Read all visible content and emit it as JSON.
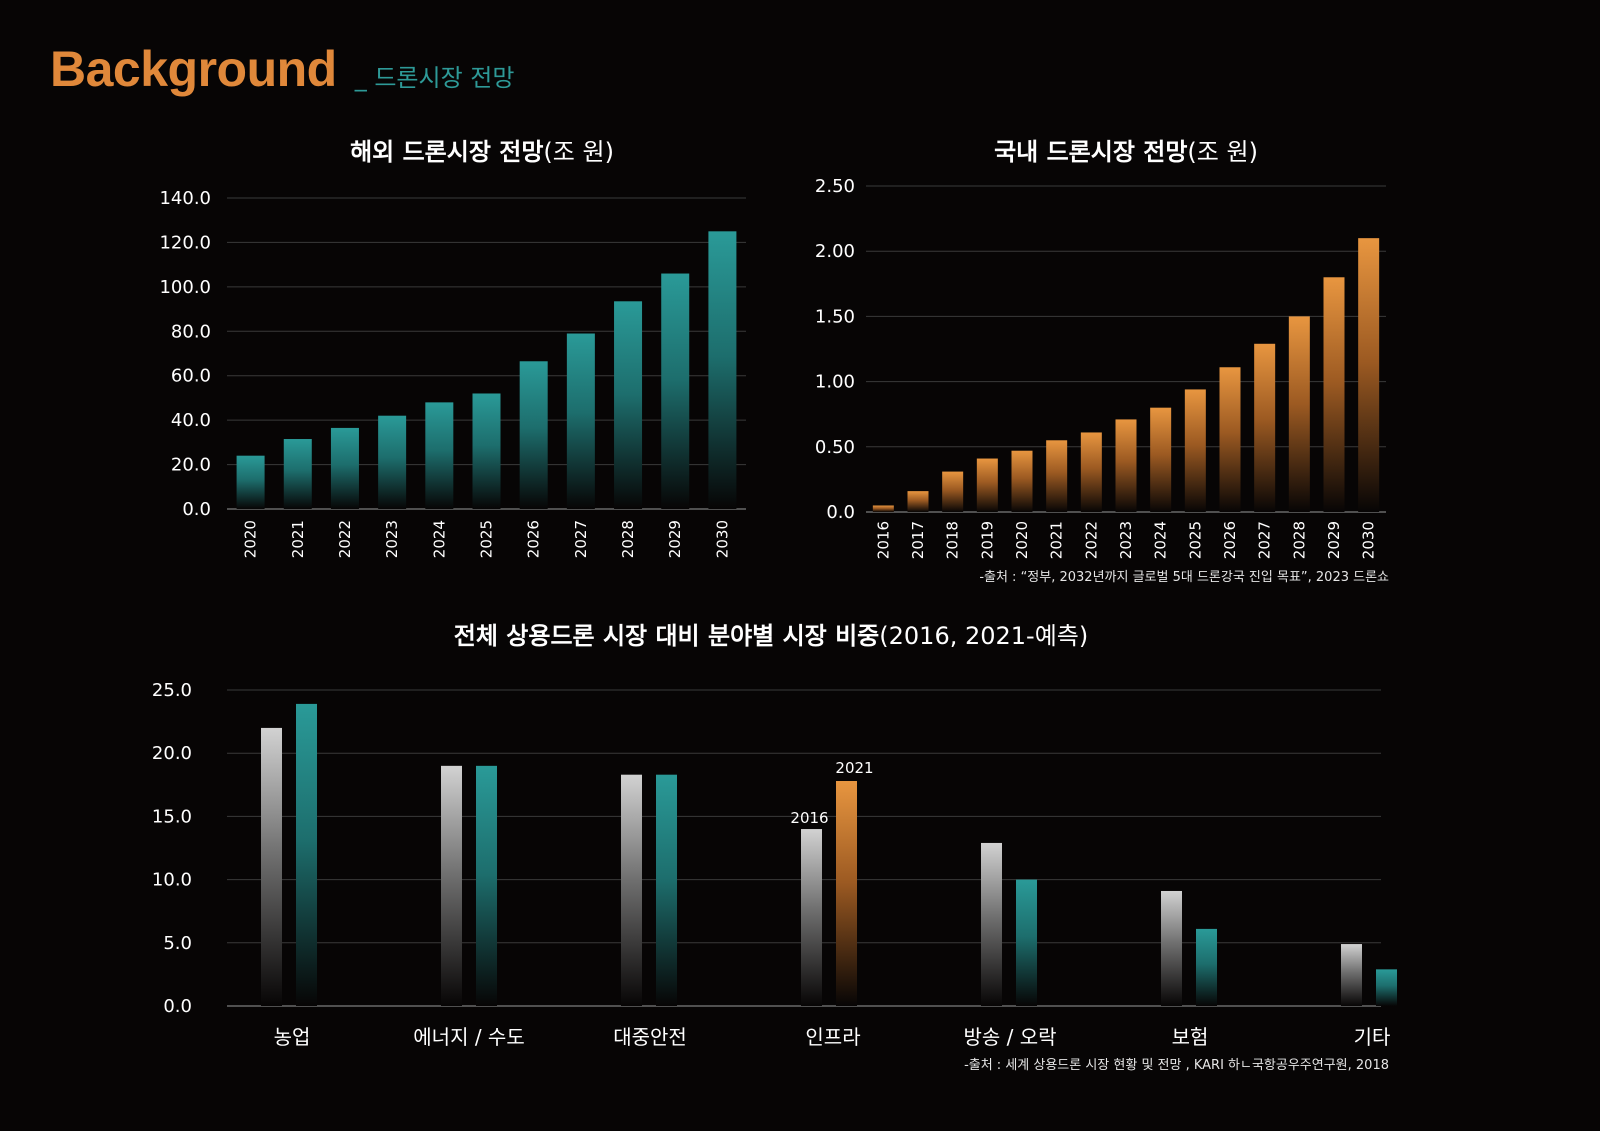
{
  "header": {
    "title": "Background",
    "subtitle": "_ 드론시장 전망"
  },
  "colors": {
    "teal": "#2e9a98",
    "orange": "#e0883a",
    "gray": "#c8c8c8"
  },
  "chart_data": [
    {
      "type": "bar",
      "title_bold": "해외 드론시장 전망",
      "title_light": "(조 원)",
      "categories": [
        "2020",
        "2021",
        "2022",
        "2023",
        "2024",
        "2025",
        "2026",
        "2027",
        "2028",
        "2029",
        "2030"
      ],
      "values": [
        24,
        31.5,
        36.5,
        42,
        48,
        52,
        66.5,
        79,
        93.5,
        106,
        125
      ],
      "ylim": [
        0,
        140
      ],
      "yticks": [
        "0.0",
        "20.0",
        "40.0",
        "60.0",
        "80.0",
        "100.0",
        "120.0",
        "140.0"
      ],
      "color": "#2e9a98",
      "grid": true
    },
    {
      "type": "bar",
      "title_bold": "국내 드론시장 전망",
      "title_light": "(조 원)",
      "categories": [
        "2016",
        "2017",
        "2018",
        "2019",
        "2020",
        "2021",
        "2022",
        "2023",
        "2024",
        "2025",
        "2026",
        "2027",
        "2028",
        "2029",
        "2030"
      ],
      "values": [
        0.05,
        0.16,
        0.31,
        0.41,
        0.47,
        0.55,
        0.61,
        0.71,
        0.8,
        0.94,
        1.11,
        1.29,
        1.5,
        1.8,
        2.1
      ],
      "ylim": [
        0,
        2.5
      ],
      "yticks": [
        "0.0",
        "0.50",
        "1.00",
        "1.50",
        "2.00",
        "2.50"
      ],
      "color": "#e0883a",
      "grid": true,
      "source": "-출처 : “정부, 2032년까지 글로벌 5대 드론강국 진입 목표”, 2023 드론쇼"
    },
    {
      "type": "bar",
      "title_bold": "전체 상용드론 시장 대비 분야별 시장 비중",
      "title_light": "(2016, 2021-예측)",
      "categories": [
        "농업",
        "에너지 / 수도",
        "대중안전",
        "인프라",
        "방송 / 오락",
        "보험",
        "기타"
      ],
      "series": [
        {
          "name": "2016",
          "values": [
            22,
            19,
            18.3,
            14,
            12.9,
            9.1,
            4.9
          ]
        },
        {
          "name": "2021",
          "values": [
            23.9,
            19,
            18.3,
            17.8,
            10,
            6.1,
            2.9
          ]
        }
      ],
      "ylim": [
        0,
        25
      ],
      "yticks": [
        "0.0",
        "5.0",
        "10.0",
        "15.0",
        "20.0",
        "25.0"
      ],
      "grid": true,
      "annotation_labels": [
        "2016",
        "2021"
      ],
      "source": "-출처 : 세계 상용드론 시장 현황 및 전망 , KARI 하ㄴ국항공우주연구원, 2018"
    }
  ]
}
